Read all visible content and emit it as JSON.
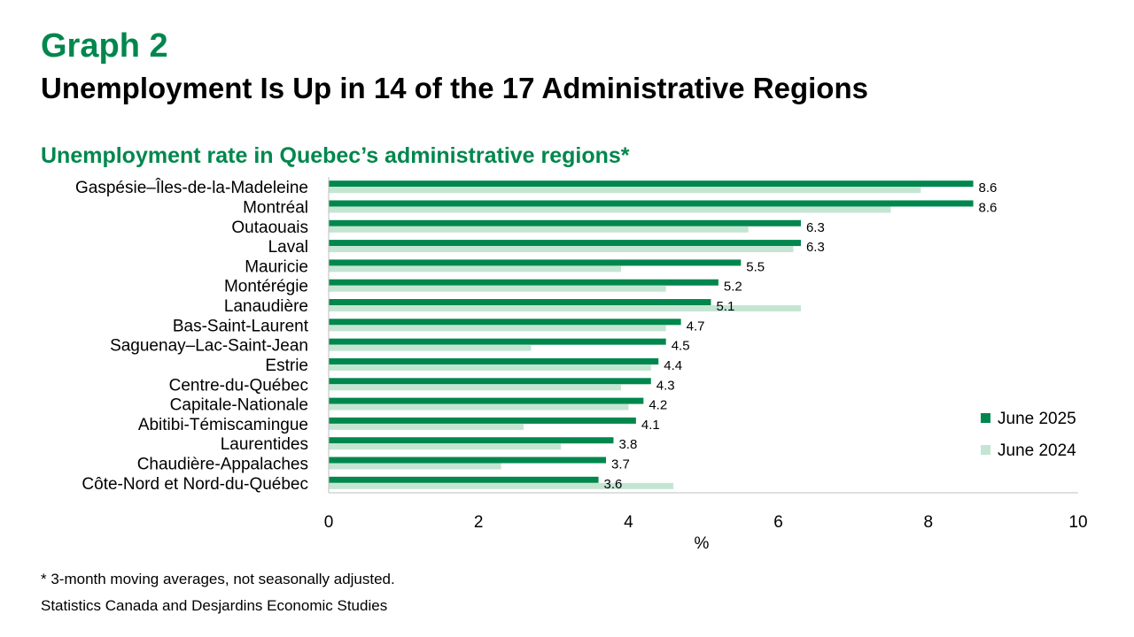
{
  "header": {
    "graph_label": "Graph 2",
    "title": "Unemployment Is Up in 14 of the 17 Administrative Regions"
  },
  "footer": {
    "footnote": "* 3-month moving averages, not seasonally adjusted.",
    "source": "Statistics Canada and Desjardins Economic Studies"
  },
  "colors": {
    "accent": "#00874d",
    "series_2025": "#00874d",
    "series_2024": "#c5e5d3"
  },
  "chart_data": {
    "type": "bar",
    "orientation": "horizontal",
    "title": "Unemployment rate in Quebec’s administrative regions*",
    "xlabel": "%",
    "ylabel": "",
    "xlim": [
      0,
      10
    ],
    "x_ticks": [
      "0",
      "2",
      "4",
      "6",
      "8",
      "10"
    ],
    "grid": false,
    "legend_position": "right",
    "categories": [
      "Gaspésie–Îles-de-la-Madeleine",
      "Montréal",
      "Outaouais",
      "Laval",
      "Mauricie",
      "Montérégie",
      "Lanaudière",
      "Bas-Saint-Laurent",
      "Saguenay–Lac-Saint-Jean",
      "Estrie",
      "Centre-du-Québec",
      "Capitale-Nationale",
      "Abitibi-Témiscamingue",
      "Laurentides",
      "Chaudière-Appalaches",
      "Côte-Nord et Nord-du-Québec"
    ],
    "series": [
      {
        "name": "June 2025",
        "color": "#00874d",
        "values": [
          8.6,
          8.6,
          6.3,
          6.3,
          5.5,
          5.2,
          5.1,
          4.7,
          4.5,
          4.4,
          4.3,
          4.2,
          4.1,
          3.8,
          3.7,
          3.6
        ],
        "data_labels": [
          "8.6",
          "8.6",
          "6.3",
          "6.3",
          "5.5",
          "5.2",
          "5.1",
          "4.7",
          "4.5",
          "4.4",
          "4.3",
          "4.2",
          "4.1",
          "3.8",
          "3.7",
          "3.6"
        ]
      },
      {
        "name": "June 2024",
        "color": "#c5e5d3",
        "values": [
          7.9,
          7.5,
          5.6,
          6.2,
          3.9,
          4.5,
          6.3,
          4.5,
          2.7,
          4.3,
          3.9,
          4.0,
          2.6,
          3.1,
          2.3,
          4.6
        ]
      }
    ]
  }
}
